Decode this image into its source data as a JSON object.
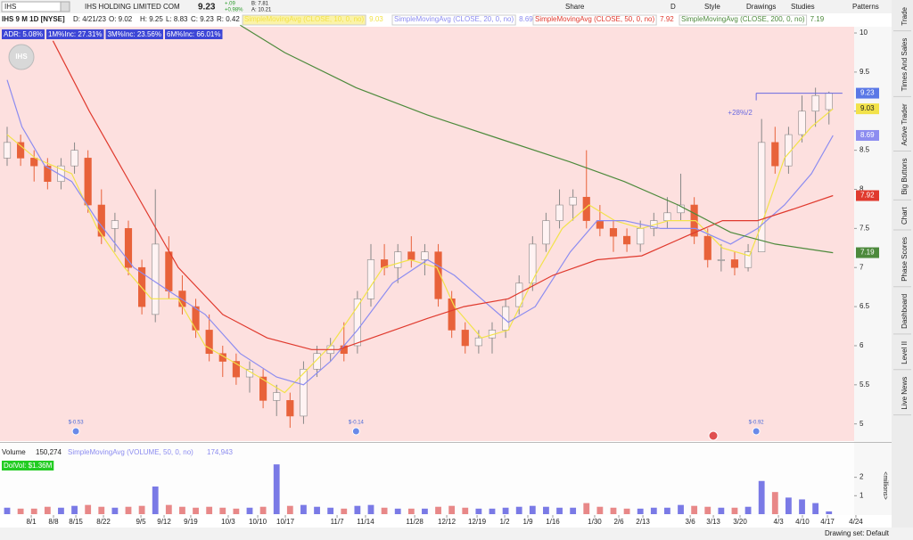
{
  "toolbar": {
    "symbol": "IHS",
    "company": "IHS HOLDING LIMITED COM",
    "last": "9.23",
    "change": "+.09",
    "change_pct": "+0.98%",
    "bid": "B: 7.81",
    "ask": "A: 10.21",
    "buttons": [
      "Share",
      "D",
      "Style",
      "Drawings",
      "Studies",
      "Patterns"
    ]
  },
  "header": {
    "title": "IHS 9 M 1D [NYSE]",
    "date": "D: 4/21/23",
    "open": "O: 9.02",
    "high": "H: 9.25",
    "low": "L: 8.83",
    "close": "C: 9.23",
    "range": "R: 0.42"
  },
  "badges": [
    "ADR: 5.08%",
    "1M%Inc: 27.31%",
    "3M%Inc: 23.56%",
    "6M%Inc: 66.01%"
  ],
  "chart_data": [
    {
      "type": "candlestick",
      "open": [
        8.4,
        8.6,
        8.4,
        8.3,
        8.1,
        8.3,
        8.4,
        7.8,
        7.5,
        7.5,
        7.0,
        6.4,
        7.2,
        6.7,
        6.5,
        6.2,
        5.9,
        5.8,
        5.6,
        5.6,
        5.3,
        5.3,
        5.1,
        5.7,
        5.9,
        6.0,
        6.0,
        6.6,
        7.1,
        7.0,
        7.2,
        7.1,
        7.2,
        6.6,
        6.2,
        6.0,
        6.1,
        6.2,
        6.5,
        6.8,
        7.3,
        7.6,
        7.8,
        7.9,
        7.6,
        7.5,
        7.4,
        7.3,
        7.5,
        7.6,
        7.7,
        7.8,
        7.4,
        7.1,
        7.1,
        7.0,
        7.2,
        8.6,
        8.3,
        8.7,
        9.0,
        9.02
      ],
      "high": [
        8.8,
        8.7,
        8.5,
        8.4,
        8.4,
        8.6,
        8.5,
        8.0,
        7.7,
        7.6,
        7.1,
        8.0,
        7.4,
        6.9,
        6.6,
        6.4,
        6.0,
        5.9,
        5.8,
        5.7,
        5.5,
        5.4,
        5.8,
        6.0,
        6.1,
        6.3,
        6.7,
        7.3,
        7.3,
        7.3,
        7.4,
        7.3,
        7.3,
        6.7,
        6.3,
        6.2,
        6.3,
        6.6,
        6.9,
        7.4,
        7.7,
        8.0,
        8.0,
        8.5,
        7.8,
        7.6,
        7.5,
        7.6,
        7.7,
        7.9,
        8.2,
        7.9,
        7.5,
        7.3,
        7.2,
        7.3,
        8.9,
        8.8,
        8.8,
        9.2,
        9.3,
        9.25
      ],
      "low": [
        8.3,
        8.3,
        8.1,
        8.0,
        8.0,
        8.2,
        7.7,
        7.3,
        7.2,
        6.9,
        6.4,
        6.3,
        6.6,
        6.4,
        6.1,
        5.8,
        5.6,
        5.5,
        5.4,
        5.2,
        5.1,
        4.95,
        5.0,
        5.6,
        5.8,
        5.8,
        5.9,
        6.5,
        6.9,
        6.8,
        7.0,
        6.9,
        6.5,
        6.1,
        5.9,
        5.9,
        5.9,
        6.1,
        6.4,
        6.7,
        7.2,
        7.5,
        7.6,
        7.5,
        7.4,
        7.2,
        7.2,
        7.2,
        7.4,
        7.5,
        7.6,
        7.3,
        7.0,
        6.95,
        6.9,
        6.95,
        7.2,
        8.2,
        8.2,
        8.6,
        8.8,
        8.83
      ],
      "close": [
        8.6,
        8.4,
        8.3,
        8.1,
        8.3,
        8.5,
        7.8,
        7.4,
        7.6,
        7.0,
        6.5,
        7.3,
        6.7,
        6.5,
        6.2,
        5.9,
        5.8,
        5.6,
        5.7,
        5.3,
        5.4,
        5.1,
        5.7,
        5.9,
        6.0,
        5.9,
        6.6,
        7.1,
        7.0,
        7.2,
        7.1,
        7.2,
        6.6,
        6.2,
        6.0,
        6.1,
        6.2,
        6.5,
        6.8,
        7.3,
        7.6,
        7.8,
        7.9,
        7.6,
        7.5,
        7.4,
        7.3,
        7.5,
        7.6,
        7.7,
        7.8,
        7.4,
        7.1,
        7.1,
        7.0,
        7.2,
        8.6,
        8.3,
        8.7,
        9.0,
        9.2,
        9.23
      ],
      "up_color": "#fff3f3",
      "down_color": "#e8623a",
      "xlim": [
        -0.53,
        62.87
      ],
      "xticks": [
        {
          "value": 1.79,
          "label": "8/1"
        },
        {
          "value": 3.44,
          "label": "8/8"
        },
        {
          "value": 5.1,
          "label": "8/15"
        },
        {
          "value": 7.15,
          "label": "8/22"
        },
        {
          "value": 9.93,
          "label": "9/5"
        },
        {
          "value": 11.65,
          "label": "9/12"
        },
        {
          "value": 13.63,
          "label": "9/19"
        },
        {
          "value": 16.41,
          "label": "10/3"
        },
        {
          "value": 18.6,
          "label": "10/10"
        },
        {
          "value": 20.65,
          "label": "10/17"
        },
        {
          "value": 24.49,
          "label": "11/7"
        },
        {
          "value": 26.6,
          "label": "11/14"
        },
        {
          "value": 30.25,
          "label": "11/28"
        },
        {
          "value": 32.63,
          "label": "12/12"
        },
        {
          "value": 34.88,
          "label": "12/19"
        },
        {
          "value": 36.93,
          "label": "1/2"
        },
        {
          "value": 38.65,
          "label": "1/9"
        },
        {
          "value": 40.5,
          "label": "1/16"
        },
        {
          "value": 43.61,
          "label": "1/30"
        },
        {
          "value": 45.4,
          "label": "2/6"
        },
        {
          "value": 47.19,
          "label": "2/13"
        },
        {
          "value": 50.7,
          "label": "3/6"
        },
        {
          "value": 52.42,
          "label": "3/13"
        },
        {
          "value": 54.4,
          "label": "3/20"
        },
        {
          "value": 57.25,
          "label": "4/3"
        },
        {
          "value": 59.03,
          "label": "4/10"
        },
        {
          "value": 60.89,
          "label": "4/17"
        },
        {
          "value": 63.0,
          "label": "4/24"
        }
      ],
      "ylim": [
        4.78,
        10.08
      ],
      "yticks": [
        5,
        5.5,
        6,
        6.5,
        7,
        7.5,
        8,
        8.5,
        9,
        9.5,
        10
      ],
      "series": [
        {
          "name": "SimpleMovingAvg (CLOSE, 10, 0, no)",
          "color": "#f2e24a",
          "current": 9.03,
          "x": [
            0,
            2.1,
            4.8,
            6.7,
            8.7,
            10.7,
            12.7,
            14.7,
            16.7,
            18.7,
            20.6,
            22.3,
            24.0,
            26.0,
            27.9,
            29.9,
            31.9,
            33.2,
            35.2,
            37.2,
            39.2,
            41.2,
            43.2,
            45.1,
            47.1,
            49.1,
            51.1,
            53.1,
            55.1,
            56.1,
            57.7,
            59.7,
            61.3
          ],
          "values": [
            8.7,
            8.4,
            8.2,
            7.5,
            7.0,
            6.6,
            6.6,
            6.0,
            5.8,
            5.6,
            5.4,
            5.7,
            6.0,
            6.5,
            7.0,
            7.1,
            7.0,
            6.5,
            6.1,
            6.2,
            6.9,
            7.5,
            7.8,
            7.6,
            7.5,
            7.6,
            7.6,
            7.25,
            7.15,
            7.6,
            8.4,
            8.8,
            9.03
          ]
        },
        {
          "name": "SimpleMovingAvg (CLOSE, 20, 0, no)",
          "color": "#8c8cf0",
          "current": 8.69,
          "x": [
            0,
            1.1,
            2.8,
            4.8,
            6.7,
            9.4,
            12.0,
            14.7,
            17.3,
            20.0,
            22.0,
            24.0,
            26.0,
            28.6,
            31.2,
            33.2,
            35.2,
            37.2,
            39.2,
            41.8,
            43.8,
            45.8,
            48.5,
            51.1,
            53.7,
            55.7,
            57.7,
            59.7,
            61.3
          ],
          "values": [
            9.4,
            8.8,
            8.3,
            8.1,
            7.6,
            7.0,
            6.7,
            6.4,
            5.9,
            5.6,
            5.5,
            5.8,
            6.2,
            6.8,
            7.1,
            6.9,
            6.6,
            6.3,
            6.5,
            7.2,
            7.6,
            7.6,
            7.5,
            7.5,
            7.3,
            7.5,
            7.8,
            8.2,
            8.69
          ]
        },
        {
          "name": "SimpleMovingAvg (CLOSE, 50, 0, no)",
          "color": "#e03a2e",
          "current": 7.92,
          "x": [
            3.4,
            6.1,
            9.4,
            12.7,
            16.0,
            19.3,
            22.6,
            24.6,
            27.9,
            31.2,
            33.9,
            37.2,
            40.5,
            43.8,
            47.1,
            50.4,
            53.1,
            55.7,
            58.4,
            61.3
          ],
          "values": [
            9.9,
            9.0,
            8.0,
            7.0,
            6.4,
            6.1,
            5.95,
            5.95,
            6.15,
            6.35,
            6.5,
            6.6,
            6.9,
            7.1,
            7.15,
            7.4,
            7.6,
            7.6,
            7.75,
            7.92
          ]
        },
        {
          "name": "SimpleMovingAvg (CLOSE, 200, 0, no)",
          "color": "#4d8a3c",
          "current": 7.19,
          "x": [
            17.3,
            20.6,
            25.9,
            31.2,
            36.5,
            41.8,
            45.8,
            49.8,
            53.7,
            57.0,
            61.3
          ],
          "values": [
            10.1,
            9.75,
            9.3,
            8.95,
            8.65,
            8.35,
            8.1,
            7.8,
            7.45,
            7.3,
            7.19
          ]
        }
      ],
      "annotations": [
        "+28%/2"
      ],
      "events": [
        {
          "x": 5.1,
          "label": "$-0.53"
        },
        {
          "x": 25.9,
          "label": "$-0.14"
        },
        {
          "x": 55.6,
          "label": "$-0.92"
        }
      ]
    },
    {
      "type": "bar",
      "title": "Volume",
      "value_label": "150,274",
      "study": "SimpleMovingAvg (VOLUME, 50, 0, no)",
      "study_value": "174,943",
      "badge": "DolVol: $1.36M",
      "values": [
        0.35,
        0.3,
        0.3,
        0.4,
        0.35,
        0.45,
        0.5,
        0.4,
        0.35,
        0.4,
        0.45,
        1.5,
        0.5,
        0.4,
        0.35,
        0.4,
        0.35,
        0.3,
        0.35,
        0.4,
        2.7,
        0.45,
        0.5,
        0.4,
        0.35,
        0.3,
        0.45,
        0.5,
        0.35,
        0.3,
        0.3,
        0.3,
        0.4,
        0.45,
        0.35,
        0.3,
        0.3,
        0.35,
        0.4,
        0.45,
        0.4,
        0.35,
        0.35,
        0.6,
        0.4,
        0.35,
        0.3,
        0.3,
        0.35,
        0.35,
        0.5,
        0.45,
        0.4,
        0.35,
        0.35,
        0.4,
        1.8,
        1.2,
        0.9,
        0.8,
        0.6,
        0.15
      ],
      "color": "#7a7ae6",
      "down_color": "#e88888",
      "ylim": [
        0,
        2.9
      ],
      "yticks": [
        1,
        2
      ],
      "axis_label": "<millions>"
    }
  ],
  "sidebar_tabs": [
    "Trade",
    "Times And Sales",
    "Active Trader",
    "Big Buttons",
    "Chart",
    "Phase Scores",
    "Dashboard",
    "Level II",
    "Live News"
  ],
  "status": "Drawing set: Default"
}
